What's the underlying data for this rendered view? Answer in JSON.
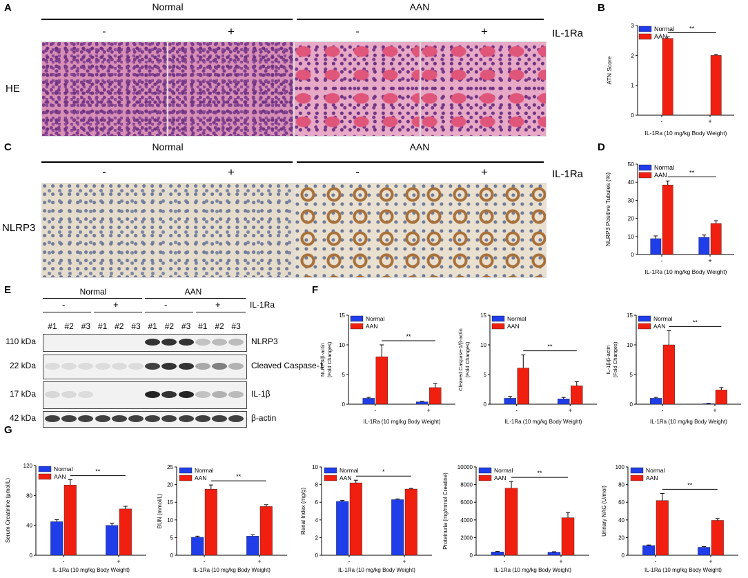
{
  "colors": {
    "normal": "#1f3de8",
    "aan": "#f01f10"
  },
  "panelA": {
    "letter": "A",
    "groups": [
      "Normal",
      "AAN"
    ],
    "signs": [
      "-",
      "+",
      "-",
      "+"
    ],
    "treatment": "IL-1Ra",
    "row_label": "HE"
  },
  "panelC": {
    "letter": "C",
    "groups": [
      "Normal",
      "AAN"
    ],
    "signs": [
      "-",
      "+",
      "-",
      "+"
    ],
    "treatment": "IL-1Ra",
    "row_label": "NLRP3"
  },
  "panelE": {
    "letter": "E",
    "groups": [
      "Normal",
      "AAN"
    ],
    "signs": [
      "-",
      "+",
      "-",
      "+"
    ],
    "treatment": "IL-1Ra",
    "lanes": [
      "#1",
      "#2",
      "#3",
      "#1",
      "#2",
      "#3",
      "#1",
      "#2",
      "#3",
      "#1",
      "#2",
      "#3"
    ],
    "rows": [
      {
        "kda": "110 kDa",
        "target": "NLRP3",
        "intensity": [
          0,
          0,
          0,
          0,
          0,
          0,
          0.9,
          0.9,
          0.9,
          0.25,
          0.3,
          0.3
        ]
      },
      {
        "kda": "22 kDa",
        "target": "Cleaved Caspase-1",
        "intensity": [
          0.05,
          0.05,
          0.05,
          0.05,
          0.05,
          0.05,
          0.85,
          0.9,
          0.9,
          0.4,
          0.6,
          0.35
        ]
      },
      {
        "kda": "17 kDa",
        "target": "IL-1β",
        "intensity": [
          0.1,
          0.08,
          0.05,
          0,
          0,
          0,
          0.95,
          0.9,
          0.95,
          0.25,
          0.35,
          0.3
        ]
      },
      {
        "kda": "42 kDa",
        "target": "β-actin",
        "intensity": [
          0.85,
          0.85,
          0.85,
          0.85,
          0.85,
          0.85,
          0.85,
          0.85,
          0.85,
          0.85,
          0.85,
          0.85
        ]
      }
    ]
  },
  "chart_data": [
    {
      "panel": "B",
      "type": "bar",
      "categories": [
        "-",
        "+"
      ],
      "series": [
        {
          "name": "Normal",
          "values": [
            null,
            null
          ],
          "errors": [
            0,
            0
          ]
        },
        {
          "name": "AAN",
          "values": [
            2.57,
            2.0
          ],
          "errors": [
            0.05,
            0.04
          ]
        }
      ],
      "xlabel": "IL-1Ra (10 mg/kg Body Weight)",
      "ylabel": "ATN Score",
      "ylim": [
        0,
        3
      ],
      "yticks": [
        0,
        1,
        2,
        3
      ],
      "sig": "**",
      "sig_from": [
        0,
        1
      ]
    },
    {
      "panel": "D",
      "type": "bar",
      "categories": [
        "-",
        "+"
      ],
      "series": [
        {
          "name": "Normal",
          "values": [
            8.8,
            9.5
          ],
          "errors": [
            1.5,
            1.3
          ]
        },
        {
          "name": "AAN",
          "values": [
            38.5,
            17.2
          ],
          "errors": [
            2.2,
            1.5
          ]
        }
      ],
      "xlabel": "IL-1Ra (10 mg/kg Body Weight)",
      "ylabel": "NLRP3 Positive Tubules (%)",
      "ylim": [
        0,
        50
      ],
      "yticks": [
        0,
        10,
        20,
        30,
        40,
        50
      ],
      "sig": "**",
      "sig_from": [
        0,
        1
      ]
    },
    {
      "panel": "F1",
      "type": "bar",
      "categories": [
        "-",
        "+"
      ],
      "series": [
        {
          "name": "Normal",
          "values": [
            1.0,
            0.4
          ],
          "errors": [
            0.15,
            0.1
          ]
        },
        {
          "name": "AAN",
          "values": [
            8.0,
            2.8
          ],
          "errors": [
            2.0,
            0.7
          ]
        }
      ],
      "xlabel": "IL-1Ra (10 mg/kg Body Weight)",
      "ylabel": "NLRP3/β-actin (Fold Changes)",
      "ylim": [
        0,
        15
      ],
      "yticks": [
        0,
        5,
        10,
        15
      ],
      "sig": "**",
      "sig_from": [
        0,
        1
      ]
    },
    {
      "panel": "F2",
      "type": "bar",
      "categories": [
        "-",
        "+"
      ],
      "series": [
        {
          "name": "Normal",
          "values": [
            1.0,
            0.9
          ],
          "errors": [
            0.3,
            0.25
          ]
        },
        {
          "name": "AAN",
          "values": [
            6.1,
            3.1
          ],
          "errors": [
            2.2,
            0.7
          ]
        }
      ],
      "xlabel": "IL-1Ra (10 mg/kg Body Weight)",
      "ylabel": "Cleaved Caspase-1/β-actin (Fold Changes)",
      "ylim": [
        0,
        15
      ],
      "yticks": [
        0,
        5,
        10,
        15
      ],
      "sig": "**",
      "sig_from": [
        0,
        1
      ]
    },
    {
      "panel": "F3",
      "type": "bar",
      "categories": [
        "-",
        "+"
      ],
      "series": [
        {
          "name": "Normal",
          "values": [
            1.0,
            0.1
          ],
          "errors": [
            0.15,
            0.05
          ]
        },
        {
          "name": "AAN",
          "values": [
            10.0,
            2.4
          ],
          "errors": [
            2.4,
            0.4
          ]
        }
      ],
      "xlabel": "IL-1Ra (10 mg/kg Body Weight)",
      "ylabel": "IL-1β/β-actin (Fold Changes)",
      "ylim": [
        0,
        15
      ],
      "yticks": [
        0,
        5,
        10,
        15
      ],
      "sig": "**",
      "sig_from": [
        0,
        1
      ]
    },
    {
      "panel": "G1",
      "type": "bar",
      "categories": [
        "-",
        "+"
      ],
      "series": [
        {
          "name": "Normal",
          "values": [
            45,
            40
          ],
          "errors": [
            2.5,
            3
          ]
        },
        {
          "name": "AAN",
          "values": [
            94,
            62
          ],
          "errors": [
            7,
            3.5
          ]
        }
      ],
      "xlabel": "IL-1Ra (10 mg/kg Body Weight)",
      "ylabel": "Serum Creatinine (μmol/L)",
      "ylim": [
        0,
        120
      ],
      "yticks": [
        0,
        40,
        80,
        120
      ],
      "sig": "**",
      "sig_from": [
        0,
        1
      ]
    },
    {
      "panel": "G2",
      "type": "bar",
      "categories": [
        "-",
        "+"
      ],
      "series": [
        {
          "name": "Normal",
          "values": [
            5.1,
            5.4
          ],
          "errors": [
            0.3,
            0.4
          ]
        },
        {
          "name": "AAN",
          "values": [
            18.7,
            13.8
          ],
          "errors": [
            1.2,
            0.5
          ]
        }
      ],
      "xlabel": "IL-1Ra (10 mg/kg Body Weight)",
      "ylabel": "BUN (mmol/L)",
      "ylim": [
        0,
        25
      ],
      "yticks": [
        0,
        5,
        10,
        15,
        20,
        25
      ],
      "sig": "**",
      "sig_from": [
        0,
        1
      ]
    },
    {
      "panel": "G3",
      "type": "bar",
      "categories": [
        "-",
        "+"
      ],
      "series": [
        {
          "name": "Normal",
          "values": [
            6.1,
            6.3
          ],
          "errors": [
            0.1,
            0.08
          ]
        },
        {
          "name": "AAN",
          "values": [
            8.2,
            7.5
          ],
          "errors": [
            0.3,
            0.07
          ]
        }
      ],
      "xlabel": "IL-1Ra (10 mg/kg Body Weight)",
      "ylabel": "Renal Index (mg/g)",
      "ylim": [
        0,
        10
      ],
      "yticks": [
        0,
        2,
        4,
        6,
        8,
        10
      ],
      "sig": "*",
      "sig_from": [
        0,
        1
      ]
    },
    {
      "panel": "G4",
      "type": "bar",
      "categories": [
        "-",
        "+"
      ],
      "series": [
        {
          "name": "Normal",
          "values": [
            380,
            350
          ],
          "errors": [
            40,
            40
          ]
        },
        {
          "name": "AAN",
          "values": [
            7600,
            4250
          ],
          "errors": [
            750,
            600
          ]
        }
      ],
      "xlabel": "IL-1Ra (10 mg/kg Body Weight)",
      "ylabel": "Proteinuria (mg/mmol Creatine)",
      "ylim": [
        0,
        10000
      ],
      "yticks": [
        0,
        2000,
        4000,
        6000,
        8000,
        10000
      ],
      "sig": "**",
      "sig_from": [
        0,
        1
      ]
    },
    {
      "panel": "G5",
      "type": "bar",
      "categories": [
        "-",
        "+"
      ],
      "series": [
        {
          "name": "Normal",
          "values": [
            11,
            9
          ],
          "errors": [
            0.6,
            0.8
          ]
        },
        {
          "name": "AAN",
          "values": [
            62,
            39.5
          ],
          "errors": [
            8,
            2
          ]
        }
      ],
      "xlabel": "IL-1Ra (10 mg/kg Body Weight)",
      "ylabel": "Urinary NAG (U/mol)",
      "ylim": [
        0,
        100
      ],
      "yticks": [
        0,
        20,
        40,
        60,
        80,
        100
      ],
      "sig": "**",
      "sig_from": [
        0,
        1
      ]
    }
  ],
  "panel_letters": {
    "B": "B",
    "D": "D",
    "F": "F",
    "G": "G"
  }
}
